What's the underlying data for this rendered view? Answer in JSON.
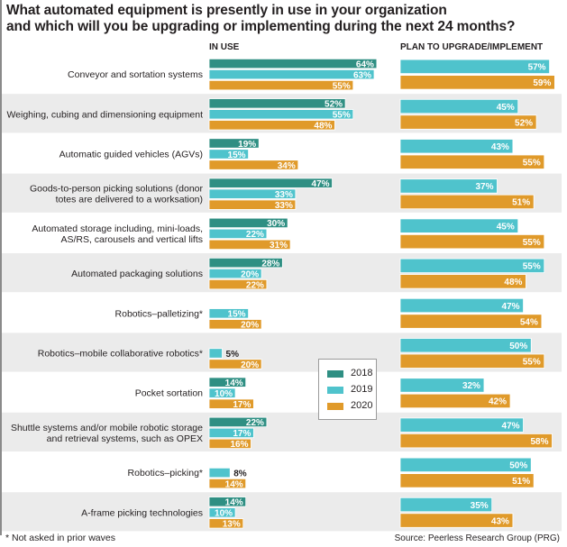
{
  "chart_data": {
    "type": "bar",
    "orientation": "horizontal",
    "title": "What automated equipment is presently in use in your organization and which will you be upgrading or implementing during the next 24 months?",
    "title_lines": [
      "What automated equipment is presently in use in your organization",
      "and which will you be upgrading or implementing during the next 24 months?"
    ],
    "panels": [
      {
        "key": "in_use",
        "title": "IN USE",
        "series_years": [
          "2018",
          "2019",
          "2020"
        ]
      },
      {
        "key": "plan",
        "title": "PLAN TO UPGRADE/IMPLEMENT",
        "series_years": [
          "2019",
          "2020"
        ]
      }
    ],
    "legend": {
      "placement": "center",
      "entries": [
        {
          "name": "2018",
          "color": "#2f8f83"
        },
        {
          "name": "2019",
          "color": "#4fc3cc"
        },
        {
          "name": "2020",
          "color": "#e09a2a"
        }
      ]
    },
    "unit": "%",
    "xlim": [
      0,
      70
    ],
    "categories": [
      {
        "label_lines": [
          "Conveyor and sortation systems"
        ],
        "in_use": {
          "2018": 64,
          "2019": 63,
          "2020": 55
        },
        "plan": {
          "2019": 57,
          "2020": 59
        }
      },
      {
        "label_lines": [
          "Weighing, cubing and dimensioning equipment"
        ],
        "in_use": {
          "2018": 52,
          "2019": 55,
          "2020": 48
        },
        "plan": {
          "2019": 45,
          "2020": 52
        }
      },
      {
        "label_lines": [
          "Automatic guided vehicles (AGVs)"
        ],
        "in_use": {
          "2018": 19,
          "2019": 15,
          "2020": 34
        },
        "plan": {
          "2019": 43,
          "2020": 55
        }
      },
      {
        "label_lines": [
          "Goods-to-person picking solutions (donor",
          "totes are delivered to a worksation)"
        ],
        "in_use": {
          "2018": 47,
          "2019": 33,
          "2020": 33
        },
        "plan": {
          "2019": 37,
          "2020": 51
        }
      },
      {
        "label_lines": [
          "Automated storage including, mini-loads,",
          "AS/RS, carousels and vertical lifts"
        ],
        "in_use": {
          "2018": 30,
          "2019": 22,
          "2020": 31
        },
        "plan": {
          "2019": 45,
          "2020": 55
        }
      },
      {
        "label_lines": [
          "Automated packaging solutions"
        ],
        "in_use": {
          "2018": 28,
          "2019": 20,
          "2020": 22
        },
        "plan": {
          "2019": 55,
          "2020": 48
        }
      },
      {
        "label_lines": [
          "Robotics–palletizing*"
        ],
        "in_use": {
          "2018": null,
          "2019": 15,
          "2020": 20
        },
        "plan": {
          "2019": 47,
          "2020": 54
        }
      },
      {
        "label_lines": [
          "Robotics–mobile collaborative robotics*"
        ],
        "in_use": {
          "2018": null,
          "2019": 5,
          "2020": 20
        },
        "plan": {
          "2019": 50,
          "2020": 55
        }
      },
      {
        "label_lines": [
          "Pocket sortation"
        ],
        "in_use": {
          "2018": 14,
          "2019": 10,
          "2020": 17
        },
        "plan": {
          "2019": 32,
          "2020": 42
        }
      },
      {
        "label_lines": [
          "Shuttle systems and/or mobile robotic storage",
          "and retrieval systems, such as OPEX"
        ],
        "in_use": {
          "2018": 22,
          "2019": 17,
          "2020": 16
        },
        "plan": {
          "2019": 47,
          "2020": 58
        }
      },
      {
        "label_lines": [
          "Robotics–picking*"
        ],
        "in_use": {
          "2018": null,
          "2019": 8,
          "2020": 14
        },
        "plan": {
          "2019": 50,
          "2020": 51
        }
      },
      {
        "label_lines": [
          "A-frame picking technologies"
        ],
        "in_use": {
          "2018": 14,
          "2019": 10,
          "2020": 13
        },
        "plan": {
          "2019": 35,
          "2020": 43
        }
      }
    ],
    "footnote": "* Not asked in prior waves",
    "source": "Source: Peerless Research Group (PRG)",
    "band_colors": {
      "odd": "#ffffff",
      "even": "#ebebeb"
    }
  }
}
